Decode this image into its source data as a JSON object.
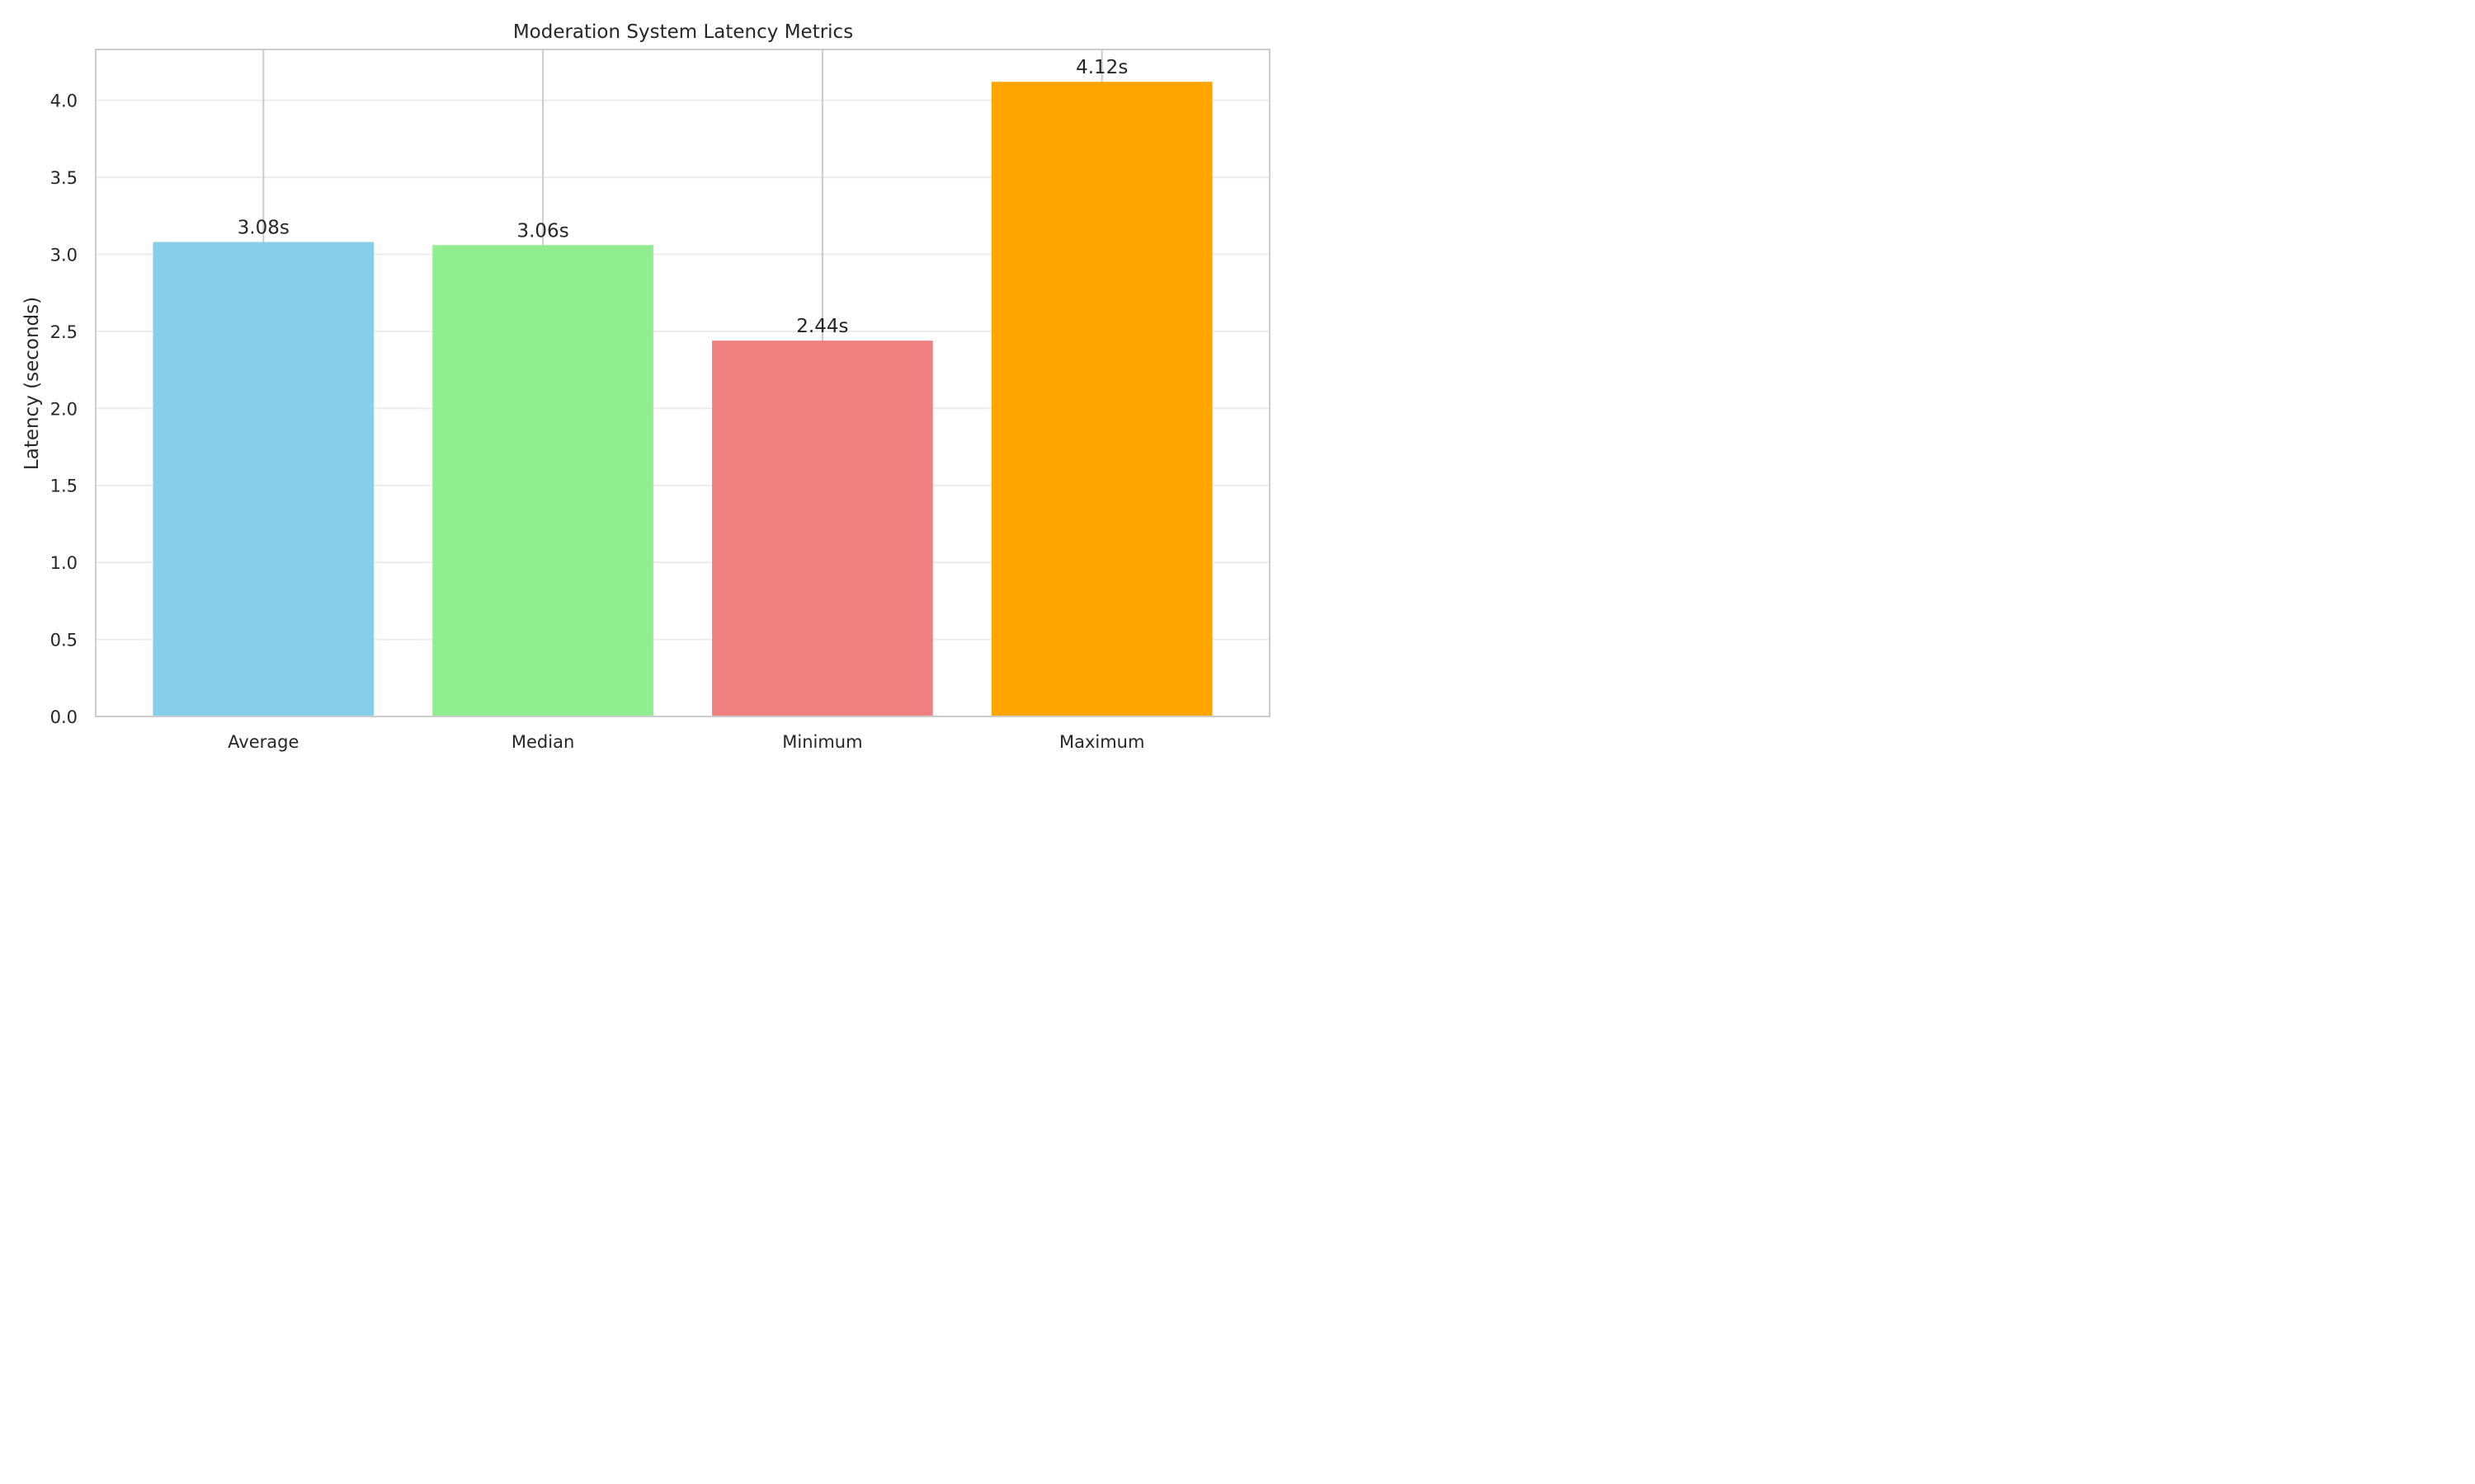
{
  "chart_data": {
    "type": "bar",
    "title": "Moderation System Latency Metrics",
    "xlabel": "",
    "ylabel": "Latency (seconds)",
    "categories": [
      "Average",
      "Median",
      "Minimum",
      "Maximum"
    ],
    "values": [
      3.08,
      3.06,
      2.44,
      4.12
    ],
    "value_labels": [
      "3.08s",
      "3.06s",
      "2.44s",
      "4.12s"
    ],
    "colors": [
      "#87ceeb",
      "#90ee90",
      "#f08080",
      "#ffa500"
    ],
    "ylim": [
      0,
      4.33
    ],
    "yticks": [
      0.0,
      0.5,
      1.0,
      1.5,
      2.0,
      2.5,
      3.0,
      3.5,
      4.0
    ],
    "ytick_labels": [
      "0.0",
      "0.5",
      "1.0",
      "1.5",
      "2.0",
      "2.5",
      "3.0",
      "3.5",
      "4.0"
    ],
    "grid": "horizontal",
    "legend": "none"
  }
}
